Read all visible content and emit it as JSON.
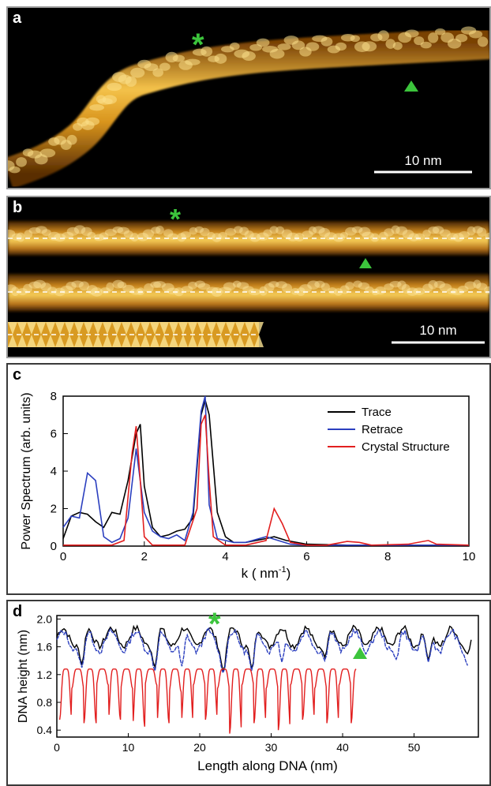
{
  "panels": {
    "a": {
      "letter": "a",
      "scale_bar_label": "10 nm",
      "markers": [
        "asterisk",
        "triangle"
      ],
      "colors": {
        "strand_core": "#f6c64a",
        "strand_edge": "#9a5a08",
        "marker": "#3cc43c",
        "background": "#000000"
      }
    },
    "b": {
      "letter": "b",
      "scale_bar_label": "10 nm",
      "markers": [
        "asterisk",
        "triangle"
      ]
    },
    "c": {
      "letter": "c"
    },
    "d": {
      "letter": "d"
    }
  },
  "chart_data": [
    {
      "type": "line",
      "panel": "c",
      "xlabel": "k ( nm",
      "xlabel_sup": "-1",
      "xlabel_end": ")",
      "ylabel": "Power Spectrum (arb. units)",
      "xlim": [
        0,
        10
      ],
      "ylim": [
        0,
        8
      ],
      "xticks": [
        "0",
        "2",
        "4",
        "6",
        "8",
        "10"
      ],
      "yticks": [
        "0",
        "2",
        "4",
        "6",
        "8"
      ],
      "grid": false,
      "legend_position": "top-right",
      "series": [
        {
          "name": "Trace",
          "color": "#000000",
          "x": [
            0,
            0.2,
            0.4,
            0.6,
            0.8,
            1,
            1.2,
            1.4,
            1.6,
            1.8,
            1.9,
            2.0,
            2.2,
            2.4,
            2.6,
            2.8,
            3.0,
            3.2,
            3.4,
            3.5,
            3.6,
            3.8,
            4.0,
            4.2,
            4.5,
            5.0,
            5.2,
            5.5,
            6,
            7,
            8,
            9,
            10
          ],
          "y": [
            0.4,
            1.6,
            1.8,
            1.7,
            1.3,
            1.0,
            1.8,
            1.7,
            3.5,
            6.0,
            6.5,
            3.2,
            1.0,
            0.5,
            0.6,
            0.8,
            0.9,
            1.5,
            7.0,
            7.8,
            7.0,
            1.8,
            0.5,
            0.2,
            0.2,
            0.4,
            0.5,
            0.3,
            0.1,
            0.05,
            0.05,
            0.05,
            0.05
          ]
        },
        {
          "name": "Retrace",
          "color": "#2b3fbf",
          "x": [
            0,
            0.2,
            0.4,
            0.6,
            0.8,
            1.0,
            1.2,
            1.4,
            1.6,
            1.8,
            2.0,
            2.2,
            2.4,
            2.6,
            2.8,
            3.0,
            3.2,
            3.4,
            3.5,
            3.6,
            3.8,
            4.0,
            4.2,
            4.5,
            5.0,
            5.3,
            5.6,
            6,
            7,
            8,
            9,
            10
          ],
          "y": [
            1.0,
            1.6,
            1.5,
            3.9,
            3.5,
            0.5,
            0.2,
            0.4,
            1.5,
            5.2,
            1.8,
            0.8,
            0.5,
            0.4,
            0.6,
            0.3,
            1.8,
            7.2,
            8.0,
            2.2,
            0.4,
            0.3,
            0.2,
            0.2,
            0.5,
            0.3,
            0.1,
            0.05,
            0.05,
            0.05,
            0.05,
            0.05
          ]
        },
        {
          "name": "Crystal Structure",
          "color": "#e21f1f",
          "x": [
            0,
            0.5,
            1.0,
            1.2,
            1.5,
            1.7,
            1.8,
            1.9,
            2.0,
            2.2,
            2.5,
            3.0,
            3.3,
            3.4,
            3.5,
            3.6,
            3.7,
            4.0,
            4.5,
            5.0,
            5.2,
            5.4,
            5.6,
            6,
            6.5,
            7.0,
            7.3,
            7.6,
            8.5,
            9.0,
            9.2,
            10
          ],
          "y": [
            0.05,
            0.05,
            0.05,
            0.05,
            0.3,
            5.0,
            6.4,
            3.5,
            0.5,
            0.05,
            0.05,
            0.05,
            2.0,
            6.5,
            7.0,
            3.5,
            0.5,
            0.05,
            0.05,
            0.3,
            2.0,
            1.2,
            0.2,
            0.05,
            0.05,
            0.25,
            0.2,
            0.05,
            0.1,
            0.3,
            0.1,
            0.05
          ]
        }
      ]
    },
    {
      "type": "line",
      "panel": "d",
      "xlabel": "Length along DNA (nm)",
      "ylabel": "DNA height (nm)",
      "xlim": [
        0,
        59
      ],
      "ylim": [
        0.3,
        2.05
      ],
      "xticks": [
        "0",
        "10",
        "20",
        "30",
        "40",
        "50"
      ],
      "yticks": [
        "0.4",
        "0.8",
        "1.2",
        "1.6",
        "2.0"
      ],
      "grid": false,
      "series": [
        {
          "color": "#000000",
          "x_end": 58,
          "period": 3.4,
          "base": 1.74,
          "amp": 0.13,
          "dips": [
            [
              3.5,
              1.35
            ],
            [
              13.7,
              1.3
            ],
            [
              23.3,
              1.25
            ],
            [
              27.3,
              1.28
            ],
            [
              37.5,
              1.45
            ],
            [
              52,
              1.4
            ],
            [
              57.5,
              1.5
            ]
          ],
          "seed": 7
        },
        {
          "color": "#2b3fbf",
          "x_end": 57.5,
          "period": 3.4,
          "base": 1.68,
          "amp": 0.14,
          "dips": [
            [
              3.5,
              1.3
            ],
            [
              13.7,
              1.25
            ],
            [
              17.5,
              1.32
            ],
            [
              23.3,
              1.22
            ],
            [
              27.3,
              1.25
            ],
            [
              31.5,
              1.38
            ],
            [
              37.5,
              1.4
            ],
            [
              47.5,
              1.42
            ],
            [
              52,
              1.38
            ],
            [
              57.5,
              1.33
            ]
          ],
          "seed": 13
        },
        {
          "color": "#e21f1f",
          "x_end": 42.0,
          "period": 1.7,
          "base": 1.28,
          "seed": 3,
          "dip_values": [
            0.55,
            1.0,
            0.5,
            1.05,
            0.55,
            1.0,
            0.45,
            1.05,
            0.5,
            0.95,
            0.5,
            1.05,
            0.55,
            1.0,
            0.35,
            1.05,
            0.5,
            1.0,
            0.4,
            1.05,
            0.55,
            1.0,
            0.5,
            1.05,
            0.5,
            0.95,
            0.5
          ]
        }
      ]
    }
  ]
}
